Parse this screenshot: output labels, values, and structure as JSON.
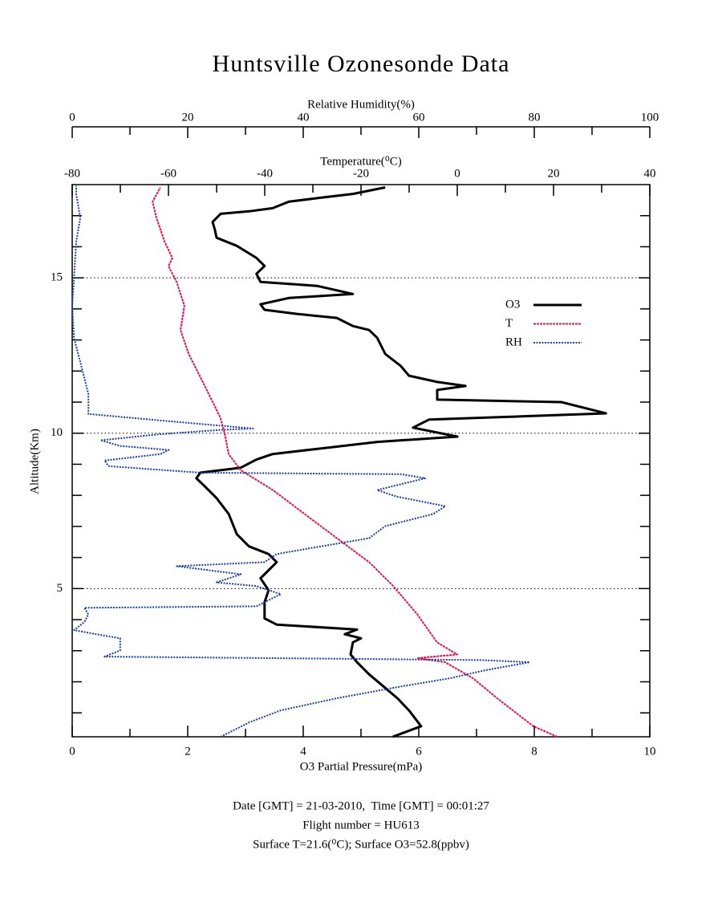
{
  "chart_data": {
    "type": "profile",
    "title": "Huntsville Ozonesonde Data",
    "xlabel": "O3 Partial Pressure(mPa)",
    "x2label": "Relative Humidity(%)",
    "x3label": "Temperature(⁰C)",
    "ylabel": "Altitude(Km)",
    "xlim": [
      0,
      10
    ],
    "xticks": [
      0,
      2,
      4,
      6,
      8,
      10
    ],
    "xminor_ticks": [
      1,
      3,
      5,
      7,
      9
    ],
    "x2lim": [
      0,
      100
    ],
    "x2ticks": [
      0,
      20,
      40,
      60,
      80,
      100
    ],
    "x2minor_ticks": [
      10,
      30,
      50,
      70,
      90
    ],
    "x3lim": [
      -80,
      40
    ],
    "x3ticks": [
      -80,
      -60,
      -40,
      -20,
      0,
      20,
      40
    ],
    "x3minor_ticks": [
      -70,
      -50,
      -30,
      -10,
      10,
      30
    ],
    "ylim": [
      0.23,
      18
    ],
    "yticks": [
      5,
      10,
      15
    ],
    "yminor_ticks": [
      1,
      2,
      3,
      4,
      6,
      7,
      8,
      9,
      11,
      12,
      13,
      14,
      16,
      17
    ],
    "grid": true,
    "legend": "right",
    "series": [
      {
        "name": "O3",
        "color": "#000000",
        "axis": "x",
        "values": [
          5.55,
          6.04,
          5.83,
          5.63,
          5.39,
          5.14,
          4.93,
          4.82,
          4.86,
          5.0,
          4.72,
          4.93,
          3.54,
          3.33,
          3.33,
          3.4,
          3.26,
          3.4,
          3.54,
          3.4,
          3.06,
          2.85,
          2.71,
          2.5,
          2.29,
          2.15,
          2.22,
          2.92,
          3.19,
          3.47,
          4.31,
          5.28,
          6.67,
          5.9,
          6.18,
          7.78,
          9.24,
          8.47,
          6.32,
          6.32,
          6.81,
          6.32,
          5.83,
          5.69,
          5.42,
          5.28,
          5.14,
          4.86,
          4.58,
          3.89,
          3.33,
          3.26,
          3.75,
          4.86,
          4.24,
          3.26,
          3.19,
          3.33,
          3.19,
          2.85,
          2.5,
          2.47,
          2.43,
          2.57,
          3.06,
          3.47,
          3.75,
          4.31,
          4.86,
          5.42
        ],
        "altitude": [
          0.23,
          0.57,
          1.08,
          1.47,
          1.85,
          2.24,
          2.63,
          2.88,
          3.27,
          3.4,
          3.53,
          3.68,
          3.84,
          4.04,
          4.56,
          4.95,
          5.33,
          5.59,
          5.85,
          6.11,
          6.36,
          6.75,
          7.4,
          7.91,
          8.3,
          8.55,
          8.73,
          8.89,
          9.15,
          9.33,
          9.51,
          9.72,
          9.89,
          10.18,
          10.44,
          10.54,
          10.64,
          11.0,
          11.08,
          11.39,
          11.52,
          11.65,
          11.85,
          12.16,
          12.55,
          13.07,
          13.32,
          13.45,
          13.71,
          13.84,
          13.97,
          14.15,
          14.35,
          14.48,
          14.74,
          14.87,
          15.13,
          15.38,
          15.64,
          16.03,
          16.29,
          16.55,
          16.8,
          17.06,
          17.14,
          17.24,
          17.45,
          17.58,
          17.7,
          17.91
        ]
      },
      {
        "name": "T",
        "color": "#e8124a",
        "axis": "x3",
        "values": [
          20.8,
          15.8,
          8.3,
          3.3,
          -2.5,
          -8.3,
          0.0,
          -4.2,
          -8.3,
          -13.3,
          -18.3,
          -25,
          -31.7,
          -38.3,
          -45,
          -47.5,
          -48.3,
          -49.2,
          -50.8,
          -53.3,
          -55.8,
          -57.5,
          -56.7,
          -58.3,
          -60,
          -59.2,
          -60.8,
          -62.5,
          -63.3,
          -61.7
        ],
        "altitude": [
          0.23,
          0.57,
          1.47,
          2.11,
          2.63,
          2.76,
          2.88,
          3.27,
          4.17,
          5.08,
          5.85,
          6.62,
          7.4,
          8.17,
          8.81,
          9.33,
          9.97,
          10.49,
          11.0,
          11.78,
          12.55,
          13.32,
          14.1,
          14.87,
          15.38,
          15.64,
          16.16,
          16.93,
          17.45,
          17.91
        ]
      },
      {
        "name": "RH",
        "color": "#1a3fa8",
        "axis": "x2",
        "values": [
          25.7,
          30.6,
          36.1,
          45.8,
          56.9,
          65.3,
          71.5,
          79.2,
          70.8,
          5.6,
          8.3,
          8.3,
          4.2,
          0.3,
          2.1,
          2.8,
          2.1,
          31.9,
          36.1,
          31.9,
          25,
          29.2,
          18.1,
          33.3,
          35.4,
          43.1,
          51.4,
          54.2,
          62.5,
          64.6,
          56.2,
          52.8,
          55.6,
          61.1,
          56.9,
          43.1,
          22.2,
          6.3,
          5.6,
          15.3,
          16.7,
          8.3,
          4.9,
          15.3,
          25,
          31.3,
          15.3,
          2.8,
          2.8,
          2.1,
          1.4,
          0.3,
          0,
          0.3,
          0.7,
          1.4,
          0.7,
          0.7
        ],
        "altitude": [
          0.23,
          0.69,
          1.08,
          1.47,
          1.85,
          2.11,
          2.37,
          2.63,
          2.7,
          2.81,
          3.01,
          3.4,
          3.53,
          3.66,
          3.92,
          4.17,
          4.38,
          4.43,
          4.82,
          5.08,
          5.2,
          5.46,
          5.72,
          5.85,
          6.11,
          6.36,
          6.62,
          7.01,
          7.4,
          7.65,
          7.96,
          8.17,
          8.3,
          8.55,
          8.68,
          8.7,
          8.73,
          8.94,
          9.12,
          9.33,
          9.46,
          9.59,
          9.77,
          9.97,
          10.1,
          10.15,
          10.41,
          10.62,
          11.26,
          11.78,
          12.29,
          13.07,
          14.1,
          14.99,
          16.16,
          16.93,
          17.7,
          17.96
        ]
      }
    ],
    "footer": [
      "Date [GMT] = 21-03-2010,  Time [GMT] = 00:01:27",
      "Flight number = HU613",
      "Surface T=21.6(⁰C); Surface O3=52.8(ppbv)"
    ]
  }
}
